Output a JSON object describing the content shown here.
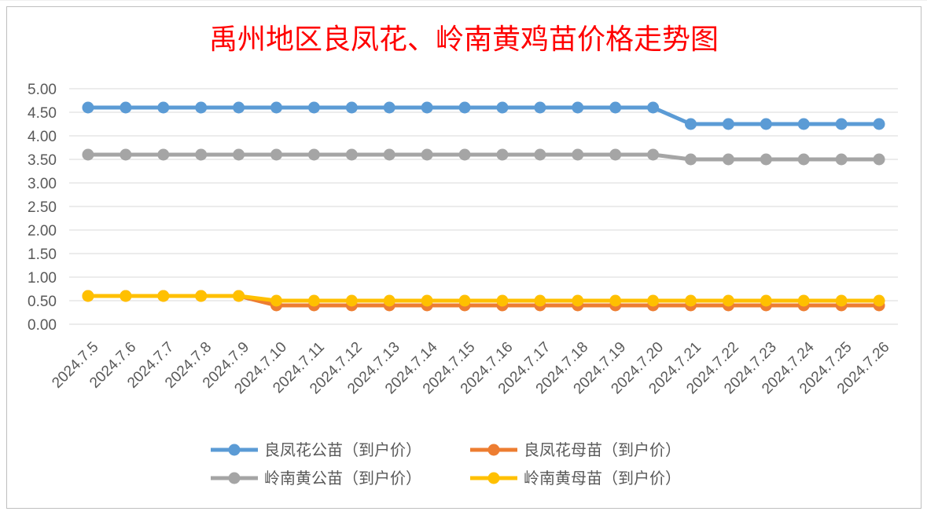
{
  "chart_data": {
    "type": "line",
    "title": "禹州地区良凤花、岭南黄鸡苗价格走势图",
    "xlabel": "",
    "ylabel": "",
    "ylim": [
      0,
      5
    ],
    "yticks": [
      "0.00",
      "0.50",
      "1.00",
      "1.50",
      "2.00",
      "2.50",
      "3.00",
      "3.50",
      "4.00",
      "4.50",
      "5.00"
    ],
    "grid": true,
    "legend_position": "bottom",
    "categories": [
      "2024.7.5",
      "2024.7.6",
      "2024.7.7",
      "2024.7.8",
      "2024.7.9",
      "2024.7.10",
      "2024.7.11",
      "2024.7.12",
      "2024.7.13",
      "2024.7.14",
      "2024.7.15",
      "2024.7.16",
      "2024.7.17",
      "2024.7.18",
      "2024.7.19",
      "2024.7.20",
      "2024.7.21",
      "2024.7.22",
      "2024.7.23",
      "2024.7.24",
      "2024.7.25",
      "2024.7.26"
    ],
    "series": [
      {
        "name": "良凤花公苗（到户价）",
        "color": "#5b9bd5",
        "values": [
          4.6,
          4.6,
          4.6,
          4.6,
          4.6,
          4.6,
          4.6,
          4.6,
          4.6,
          4.6,
          4.6,
          4.6,
          4.6,
          4.6,
          4.6,
          4.6,
          4.25,
          4.25,
          4.25,
          4.25,
          4.25,
          4.25
        ]
      },
      {
        "name": "良凤花母苗（到户价）",
        "color": "#ed7d31",
        "values": [
          0.6,
          0.6,
          0.6,
          0.6,
          0.6,
          0.4,
          0.4,
          0.4,
          0.4,
          0.4,
          0.4,
          0.4,
          0.4,
          0.4,
          0.4,
          0.4,
          0.4,
          0.4,
          0.4,
          0.4,
          0.4,
          0.4
        ]
      },
      {
        "name": "岭南黄公苗（到户价）",
        "color": "#a5a5a5",
        "values": [
          3.6,
          3.6,
          3.6,
          3.6,
          3.6,
          3.6,
          3.6,
          3.6,
          3.6,
          3.6,
          3.6,
          3.6,
          3.6,
          3.6,
          3.6,
          3.6,
          3.5,
          3.5,
          3.5,
          3.5,
          3.5,
          3.5
        ]
      },
      {
        "name": "岭南黄母苗（到户价）",
        "color": "#ffc000",
        "values": [
          0.6,
          0.6,
          0.6,
          0.6,
          0.6,
          0.5,
          0.5,
          0.5,
          0.5,
          0.5,
          0.5,
          0.5,
          0.5,
          0.5,
          0.5,
          0.5,
          0.5,
          0.5,
          0.5,
          0.5,
          0.5,
          0.5
        ]
      }
    ]
  }
}
